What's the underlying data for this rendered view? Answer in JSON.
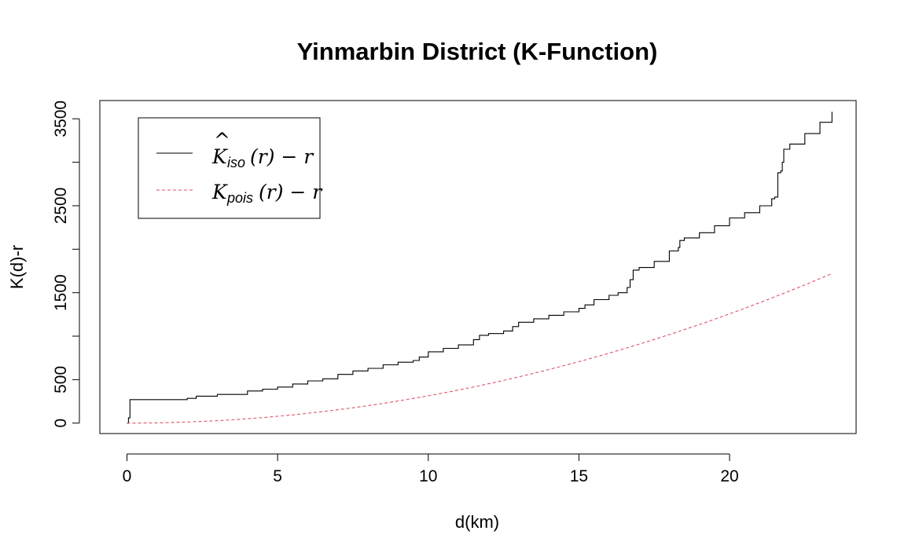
{
  "chart_data": {
    "type": "line",
    "title": "Yinmarbin District (K-Function)",
    "xlabel": "d(km)",
    "ylabel": "K(d)-r",
    "xlim": [
      -0.9,
      24.2
    ],
    "ylim": [
      -120,
      3710
    ],
    "x_ticks": [
      0,
      5,
      10,
      15,
      20
    ],
    "y_ticks": [
      0,
      500,
      1000,
      1500,
      2000,
      2500,
      3000,
      3500
    ],
    "y_tick_labels": [
      "0",
      "500",
      "",
      "1500",
      "",
      "2500",
      "",
      "3500"
    ],
    "grid": false,
    "legend_position": "top-left",
    "legend": [
      {
        "label_main": "K",
        "label_hat": "^",
        "label_sub": "iso",
        "label_rest": "(r) − r"
      },
      {
        "label_main": "K",
        "label_sub": "pois",
        "label_rest": "(r) − r"
      }
    ],
    "series": [
      {
        "key": "k_iso",
        "color": "#000000",
        "dash": "solid",
        "x": [
          0.0,
          0.05,
          0.1,
          1.0,
          2.0,
          2.3,
          3.0,
          4.0,
          4.5,
          5.0,
          5.5,
          6.0,
          6.5,
          7.0,
          7.5,
          8.0,
          8.5,
          9.0,
          9.5,
          9.7,
          10.0,
          10.5,
          11.0,
          11.5,
          11.7,
          12.0,
          12.5,
          12.8,
          13.0,
          13.5,
          14.0,
          14.5,
          15.0,
          15.2,
          15.5,
          16.0,
          16.3,
          16.6,
          16.7,
          16.8,
          17.0,
          17.5,
          18.0,
          18.3,
          18.35,
          18.5,
          19.0,
          19.5,
          20.0,
          20.5,
          21.0,
          21.4,
          21.5,
          21.6,
          21.7,
          21.75,
          21.8,
          22.0,
          22.5,
          23.0,
          23.4
        ],
        "y": [
          0,
          60,
          270,
          270,
          285,
          310,
          330,
          370,
          390,
          415,
          450,
          485,
          510,
          560,
          600,
          630,
          670,
          700,
          720,
          760,
          820,
          860,
          900,
          960,
          1010,
          1030,
          1060,
          1110,
          1160,
          1200,
          1240,
          1280,
          1320,
          1360,
          1420,
          1470,
          1500,
          1560,
          1650,
          1760,
          1790,
          1860,
          1980,
          2020,
          2100,
          2130,
          2190,
          2270,
          2360,
          2420,
          2500,
          2580,
          2600,
          2880,
          2900,
          3000,
          3150,
          3210,
          3330,
          3460,
          3580
        ]
      },
      {
        "key": "k_pois",
        "color": "#DF536B",
        "dash": "dashed",
        "function": "pi*d^2",
        "x": [
          0,
          0.5,
          1,
          1.5,
          2,
          2.5,
          3,
          3.5,
          4,
          4.5,
          5,
          5.5,
          6,
          6.5,
          7,
          7.5,
          8,
          8.5,
          9,
          9.5,
          10,
          10.5,
          11,
          11.5,
          12,
          12.5,
          13,
          13.5,
          14,
          14.5,
          15,
          15.5,
          16,
          16.5,
          17,
          17.5,
          18,
          18.5,
          19,
          19.5,
          20,
          20.5,
          21,
          21.5,
          22,
          22.5,
          23,
          23.4
        ],
        "y": [
          0,
          0.8,
          3.1,
          7.1,
          12.6,
          19.6,
          28.3,
          38.5,
          50.3,
          63.6,
          78.5,
          95.0,
          113.1,
          132.7,
          153.9,
          176.7,
          201.1,
          227.0,
          254.5,
          283.5,
          314.2,
          346.4,
          380.1,
          415.5,
          452.4,
          490.9,
          530.9,
          572.6,
          615.8,
          660.5,
          706.9,
          754.8,
          804.2,
          855.3,
          907.9,
          962.1,
          1017.9,
          1075.2,
          1134.1,
          1194.6,
          1256.6,
          1320.3,
          1385.4,
          1452.2,
          1520.5,
          1590.4,
          1661.9,
          1720.2
        ]
      }
    ]
  }
}
